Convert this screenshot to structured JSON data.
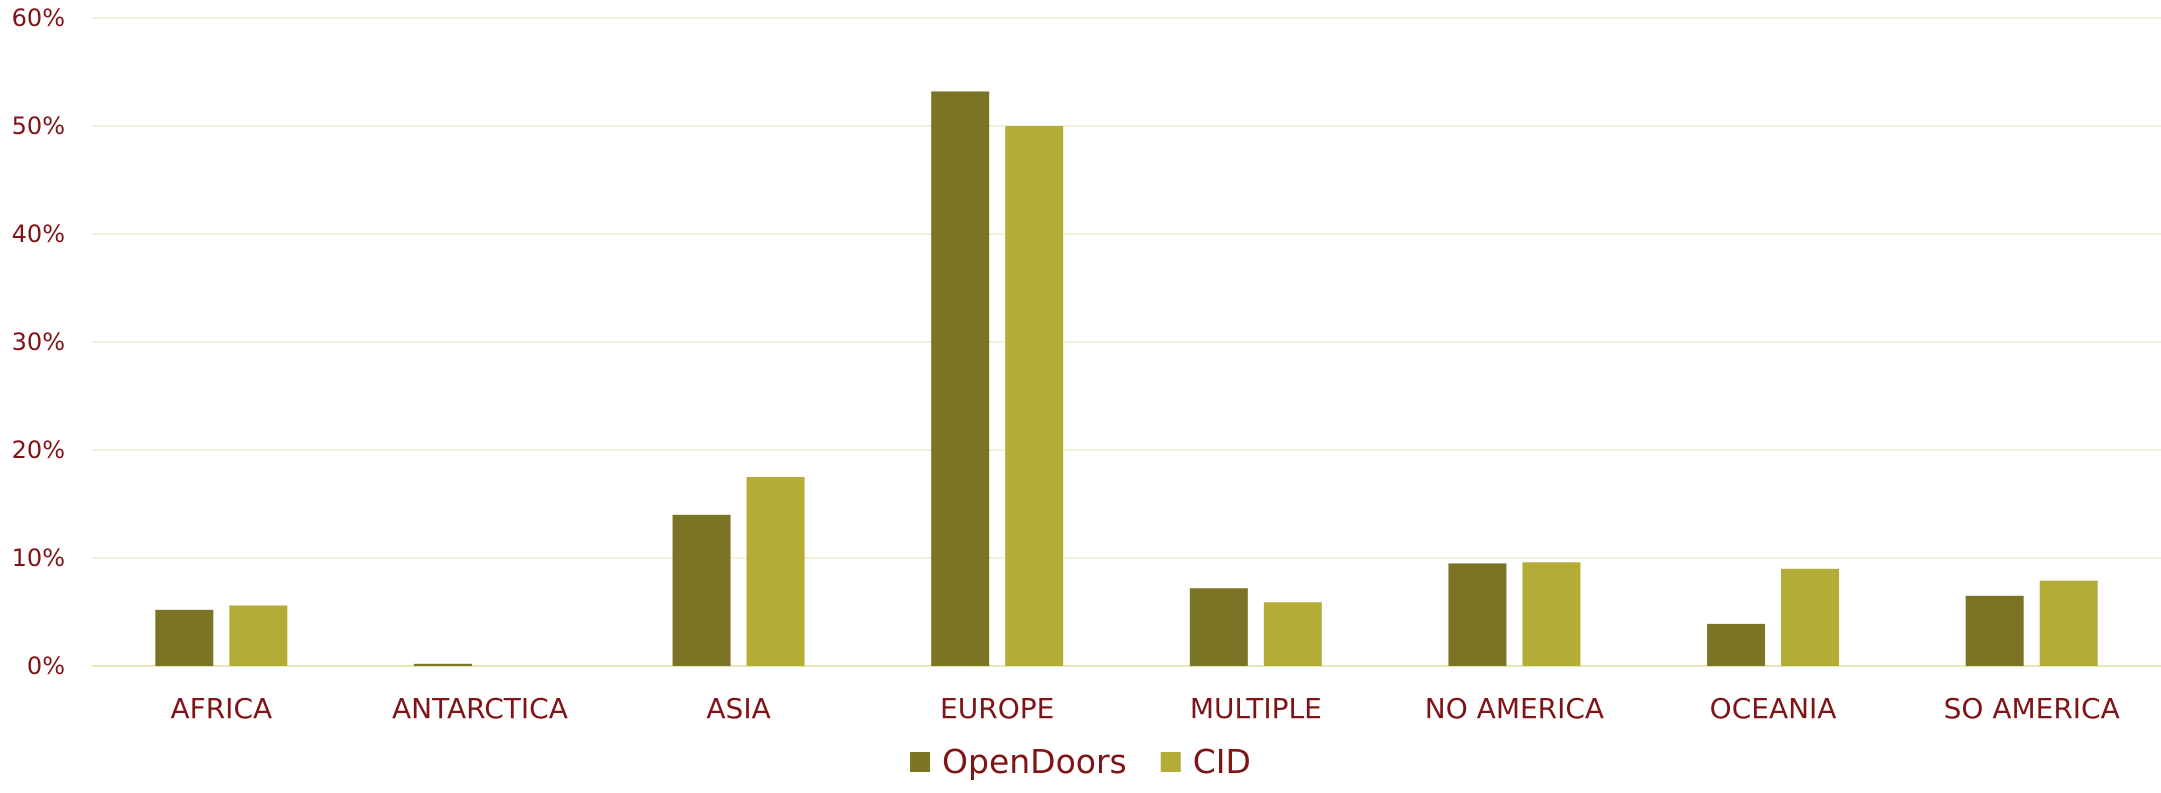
{
  "chart_data": {
    "type": "bar",
    "title": "",
    "xlabel": "",
    "ylabel": "",
    "categories": [
      "AFRICA",
      "ANTARCTICA",
      "ASIA",
      "EUROPE",
      "MULTIPLE",
      "NO AMERICA",
      "OCEANIA",
      "SO AMERICA"
    ],
    "series": [
      {
        "name": "OpenDoors",
        "color": "#7a7424",
        "values": [
          5.2,
          0.2,
          14.0,
          53.2,
          7.2,
          9.5,
          3.9,
          6.5
        ]
      },
      {
        "name": "CID",
        "color": "#b3ac36",
        "values": [
          5.6,
          0.0,
          17.5,
          50.0,
          5.9,
          9.6,
          9.0,
          7.9
        ]
      }
    ],
    "ylim": [
      0,
      60
    ],
    "yticks": [
      0,
      10,
      20,
      30,
      40,
      50,
      60
    ],
    "ytick_labels": [
      "0%",
      "10%",
      "20%",
      "30%",
      "40%",
      "50%",
      "60%"
    ],
    "grid": true,
    "legend_position": "bottom",
    "colors": {
      "text": "#7f1416",
      "grid": "#f1f3d4",
      "baseline": "#e6e8b8"
    }
  }
}
